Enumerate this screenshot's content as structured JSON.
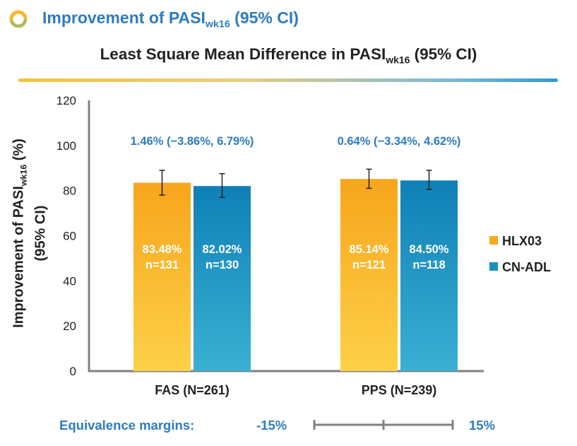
{
  "slide": {
    "title_main": "Improvement of PASI",
    "title_sub": "wk16",
    "title_tail": " (95% CI)"
  },
  "colors": {
    "accent_blue": "#2e7bbf",
    "hlx03": "#f7a81b",
    "cn_adl": "#1b8fbf",
    "ring_outer": "#f5b82e",
    "ring_inner": "#7cc68d"
  },
  "chart_data": {
    "type": "bar",
    "title_main": "Least Square Mean Difference in PASI",
    "title_sub": "wk16",
    "title_tail": " (95% CI)",
    "ylabel_main": "Improvement of PASI",
    "ylabel_sub": "wk16",
    "ylabel_tail": " (%)",
    "ylabel_line2": "(95% CI)",
    "ylim": [
      0,
      120
    ],
    "yticks": [
      "0",
      "20",
      "40",
      "60",
      "80",
      "100",
      "120"
    ],
    "categories": [
      "FAS (N=261)",
      "PPS (N=239)"
    ],
    "series": [
      {
        "name": "HLX03",
        "values": [
          83.48,
          85.14
        ],
        "ci_low": [
          78.0,
          81.0
        ],
        "ci_high": [
          89.0,
          89.5
        ],
        "labels": [
          "83.48%",
          "85.14%"
        ],
        "n_labels": [
          "n=131",
          "n=121"
        ]
      },
      {
        "name": "CN-ADL",
        "values": [
          82.02,
          84.5
        ],
        "ci_low": [
          77.0,
          80.5
        ],
        "ci_high": [
          87.5,
          89.0
        ],
        "labels": [
          "82.02%",
          "84.50%"
        ],
        "n_labels": [
          "n=130",
          "n=118"
        ]
      }
    ],
    "differences": [
      "1.46% (−3.86%, 6.79%)",
      "0.64% (−3.34%, 4.62%)"
    ],
    "legend_position": "right",
    "grid": false
  },
  "equivalence": {
    "label": "Equivalence margins:",
    "lower": "-15%",
    "upper": "15%"
  }
}
